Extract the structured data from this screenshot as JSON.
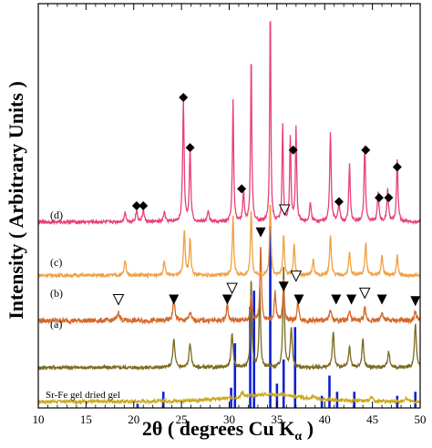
{
  "chart_data": {
    "type": "line",
    "xlabel": "2θ ( degrees Cu K",
    "xlabel_sub": "α",
    "xlabel_close": " )",
    "ylabel": "Intensity ( Arbitrary Units )",
    "xlim": [
      10,
      50
    ],
    "xticks": [
      10,
      15,
      20,
      25,
      30,
      35,
      40,
      45,
      50
    ],
    "ylim": [
      0,
      500
    ],
    "series": [
      {
        "label": "Sr-Fe gel dried gel",
        "color": "#c8a820",
        "baseline": 8,
        "noise": 2,
        "points": [
          [
            10,
            8
          ],
          [
            14,
            8
          ],
          [
            20,
            8
          ],
          [
            26,
            9
          ],
          [
            30,
            12
          ],
          [
            33,
            16
          ],
          [
            34,
            17
          ],
          [
            36,
            16
          ],
          [
            38,
            12
          ],
          [
            42,
            9
          ],
          [
            46,
            8
          ],
          [
            50,
            8
          ]
        ],
        "peaks": [
          [
            31.4,
            6,
            0.3
          ],
          [
            38.8,
            4,
            0.3
          ],
          [
            44.9,
            6,
            0.3
          ],
          [
            48.5,
            5,
            0.3
          ]
        ]
      },
      {
        "label": "(a)",
        "color": "#7a6a20",
        "baseline": 50,
        "noise": 2,
        "points": [
          [
            10,
            50
          ],
          [
            50,
            50
          ]
        ],
        "peaks": [
          [
            24.2,
            35,
            0.25
          ],
          [
            25.9,
            30,
            0.25
          ],
          [
            30.3,
            40,
            0.25
          ],
          [
            32.3,
            110,
            0.18
          ],
          [
            33.2,
            100,
            0.18
          ],
          [
            35.7,
            130,
            0.18
          ],
          [
            36.5,
            50,
            0.22
          ],
          [
            40.9,
            45,
            0.22
          ],
          [
            42.6,
            25,
            0.25
          ],
          [
            44.0,
            35,
            0.22
          ],
          [
            46.7,
            20,
            0.25
          ],
          [
            49.5,
            55,
            0.22
          ]
        ]
      },
      {
        "label": "(b)",
        "color": "#d4682a",
        "baseline": 108,
        "noise": 3,
        "points": [
          [
            10,
            108
          ],
          [
            50,
            108
          ]
        ],
        "peaks": [
          [
            18.4,
            10,
            0.3
          ],
          [
            24.2,
            25,
            0.25
          ],
          [
            25.9,
            10,
            0.25
          ],
          [
            29.8,
            20,
            0.22
          ],
          [
            32.3,
            30,
            0.2
          ],
          [
            33.3,
            95,
            0.18
          ],
          [
            34.8,
            35,
            0.2
          ],
          [
            35.7,
            50,
            0.18
          ],
          [
            37.2,
            25,
            0.2
          ],
          [
            40.6,
            15,
            0.22
          ],
          [
            42.6,
            12,
            0.22
          ],
          [
            44.2,
            15,
            0.22
          ],
          [
            46.0,
            12,
            0.22
          ],
          [
            49.5,
            12,
            0.22
          ]
        ]
      },
      {
        "label": "(c)",
        "color": "#f0a040",
        "baseline": 164,
        "noise": 2,
        "points": [
          [
            10,
            164
          ],
          [
            50,
            164
          ]
        ],
        "peaks": [
          [
            19.1,
            18,
            0.22
          ],
          [
            23.2,
            18,
            0.22
          ],
          [
            25.3,
            55,
            0.2
          ],
          [
            25.9,
            45,
            0.2
          ],
          [
            30.4,
            75,
            0.18
          ],
          [
            32.3,
            80,
            0.18
          ],
          [
            34.3,
            90,
            0.18
          ],
          [
            35.7,
            50,
            0.18
          ],
          [
            36.8,
            40,
            0.18
          ],
          [
            38.8,
            20,
            0.2
          ],
          [
            40.6,
            50,
            0.2
          ],
          [
            42.6,
            30,
            0.2
          ],
          [
            44.3,
            40,
            0.2
          ],
          [
            46.0,
            25,
            0.2
          ],
          [
            47.6,
            25,
            0.2
          ]
        ]
      },
      {
        "label": "(d)",
        "color": "#e8407a",
        "baseline": 230,
        "noise": 2,
        "points": [
          [
            10,
            230
          ],
          [
            50,
            230
          ]
        ],
        "peaks": [
          [
            19.1,
            12,
            0.22
          ],
          [
            20.3,
            14,
            0.22
          ],
          [
            21.0,
            14,
            0.22
          ],
          [
            23.2,
            12,
            0.22
          ],
          [
            25.2,
            150,
            0.18
          ],
          [
            25.9,
            88,
            0.18
          ],
          [
            27.8,
            12,
            0.22
          ],
          [
            30.4,
            150,
            0.16
          ],
          [
            31.5,
            38,
            0.18
          ],
          [
            32.3,
            205,
            0.15
          ],
          [
            34.3,
            265,
            0.14
          ],
          [
            35.6,
            120,
            0.15
          ],
          [
            36.4,
            105,
            0.16
          ],
          [
            37.0,
            115,
            0.16
          ],
          [
            38.5,
            25,
            0.2
          ],
          [
            40.6,
            110,
            0.18
          ],
          [
            41.5,
            25,
            0.2
          ],
          [
            42.6,
            70,
            0.18
          ],
          [
            44.2,
            95,
            0.18
          ],
          [
            45.6,
            35,
            0.2
          ],
          [
            46.6,
            40,
            0.2
          ],
          [
            47.6,
            75,
            0.18
          ]
        ]
      }
    ],
    "reference_lines": {
      "color": "#1020d0",
      "baseline": 0,
      "lines": [
        [
          20.4,
          5
        ],
        [
          23.1,
          20
        ],
        [
          30.2,
          25
        ],
        [
          30.6,
          80
        ],
        [
          32.2,
          125
        ],
        [
          32.6,
          145
        ],
        [
          34.3,
          225
        ],
        [
          35.0,
          30
        ],
        [
          35.7,
          60
        ],
        [
          36.9,
          100
        ],
        [
          39.7,
          15
        ],
        [
          40.5,
          40
        ],
        [
          41.3,
          20
        ],
        [
          43.1,
          20
        ],
        [
          47.6,
          15
        ],
        [
          49.5,
          20
        ]
      ]
    },
    "markers": {
      "filled_diamond": [
        [
          20.3,
          250
        ],
        [
          21.0,
          250
        ],
        [
          25.2,
          384
        ],
        [
          25.9,
          322
        ],
        [
          31.3,
          271
        ],
        [
          36.7,
          319
        ],
        [
          41.5,
          255
        ],
        [
          44.3,
          319
        ],
        [
          45.7,
          260
        ],
        [
          46.7,
          260
        ],
        [
          47.6,
          298
        ]
      ],
      "filled_triangle": [
        [
          24.2,
          134
        ],
        [
          29.8,
          134
        ],
        [
          33.3,
          217
        ],
        [
          35.7,
          150
        ],
        [
          37.3,
          134
        ],
        [
          41.2,
          134
        ],
        [
          42.8,
          134
        ],
        [
          46.0,
          134
        ],
        [
          49.5,
          132
        ]
      ],
      "open_triangle": [
        [
          18.4,
          134
        ],
        [
          30.3,
          148
        ],
        [
          35.8,
          245
        ],
        [
          37.0,
          163
        ],
        [
          44.2,
          142
        ]
      ]
    }
  }
}
